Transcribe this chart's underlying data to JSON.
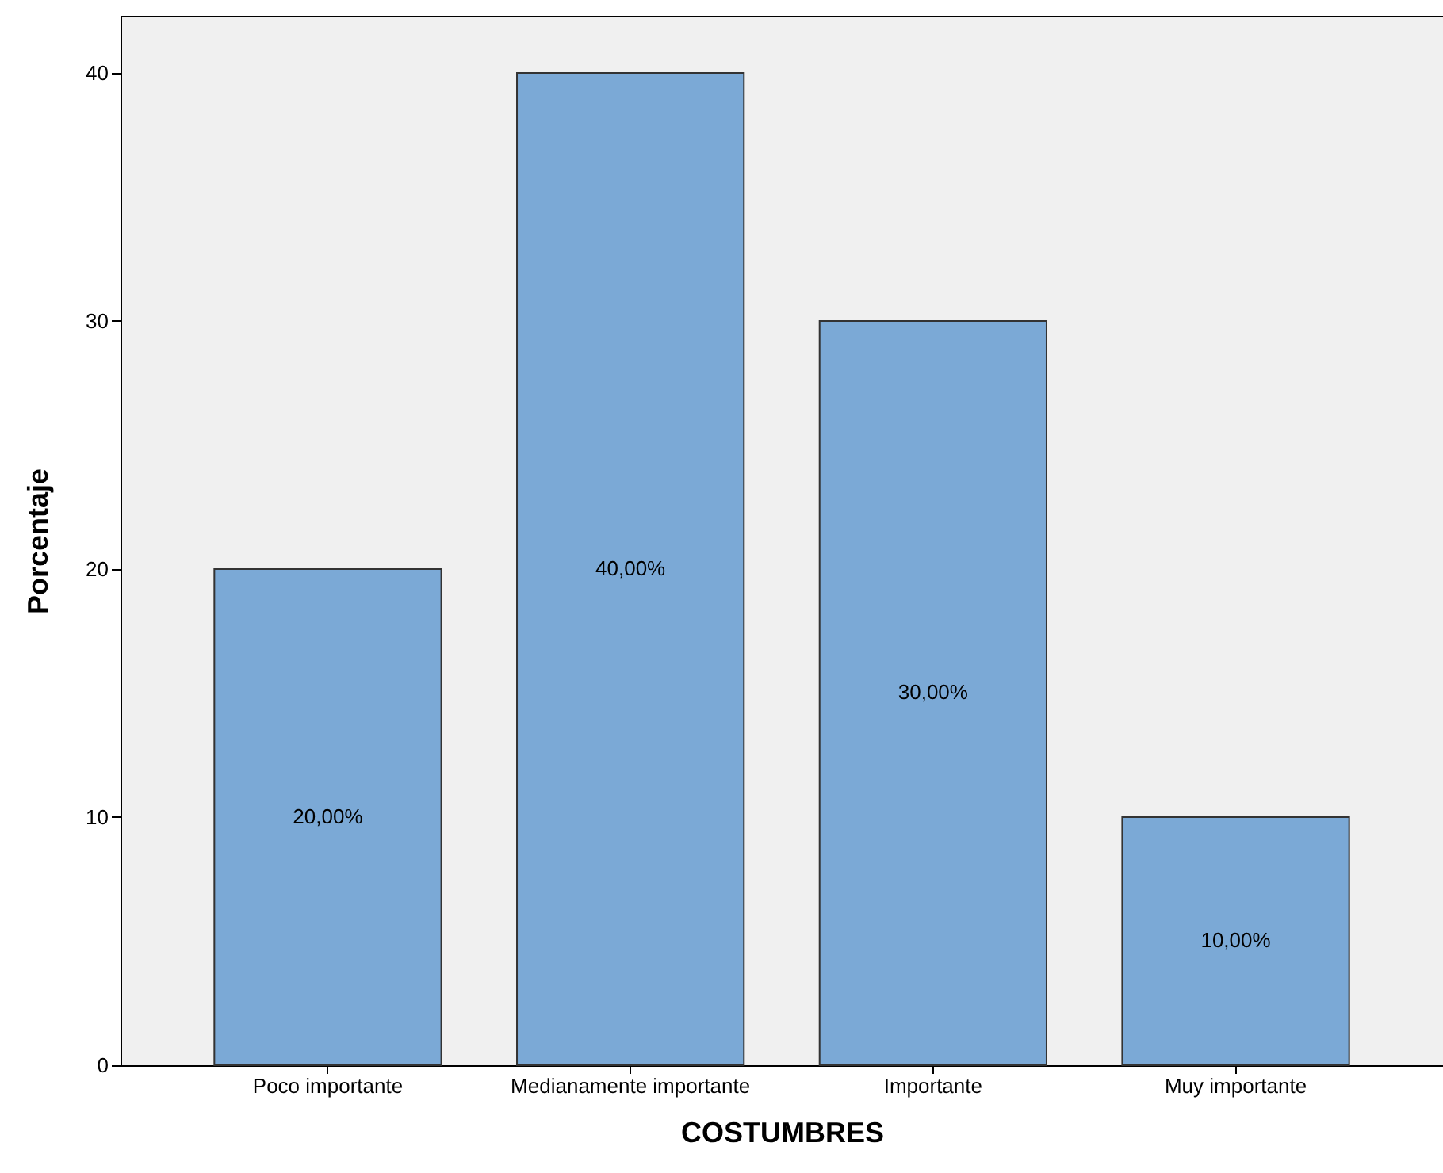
{
  "chart_data": {
    "type": "bar",
    "xlabel": "COSTUMBRES",
    "ylabel": "Porcentaje",
    "categories": [
      "Poco importante",
      "Medianamente importante",
      "Importante",
      "Muy importante"
    ],
    "values": [
      20,
      40,
      30,
      10
    ],
    "value_labels": [
      "20,00%",
      "40,00%",
      "30,00%",
      "10,00%"
    ],
    "color": "#7ba9d6",
    "ylim": [
      0,
      42.3
    ],
    "yticks": [
      0,
      10,
      20,
      30,
      40
    ]
  }
}
